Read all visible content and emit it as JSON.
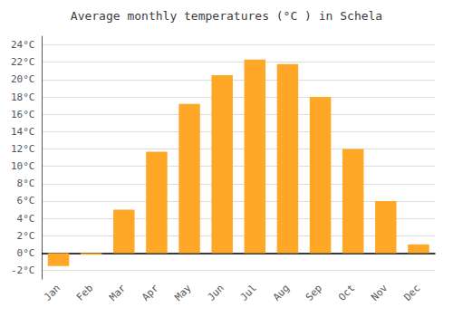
{
  "chart_data": {
    "type": "bar",
    "title": "Average monthly temperatures (°C ) in Schela",
    "categories": [
      "Jan",
      "Feb",
      "Mar",
      "Apr",
      "May",
      "Jun",
      "Jul",
      "Aug",
      "Sep",
      "Oct",
      "Nov",
      "Dec"
    ],
    "values": [
      -1.5,
      -0.2,
      5.0,
      11.7,
      17.2,
      20.5,
      22.3,
      21.8,
      18.0,
      12.0,
      6.0,
      1.0
    ],
    "color": "#FFA726",
    "ylim": [
      -3,
      25
    ],
    "yticks": [
      {
        "value": -2,
        "label": "-2°C"
      },
      {
        "value": 0,
        "label": "0°C"
      },
      {
        "value": 2,
        "label": "2°C"
      },
      {
        "value": 4,
        "label": "4°C"
      },
      {
        "value": 6,
        "label": "6°C"
      },
      {
        "value": 8,
        "label": "8°C"
      },
      {
        "value": 10,
        "label": "10°C"
      },
      {
        "value": 12,
        "label": "12°C"
      },
      {
        "value": 14,
        "label": "14°C"
      },
      {
        "value": 16,
        "label": "16°C"
      },
      {
        "value": 18,
        "label": "18°C"
      },
      {
        "value": 20,
        "label": "20°C"
      },
      {
        "value": 22,
        "label": "22°C"
      },
      {
        "value": 24,
        "label": "24°C"
      }
    ],
    "grid": true
  }
}
